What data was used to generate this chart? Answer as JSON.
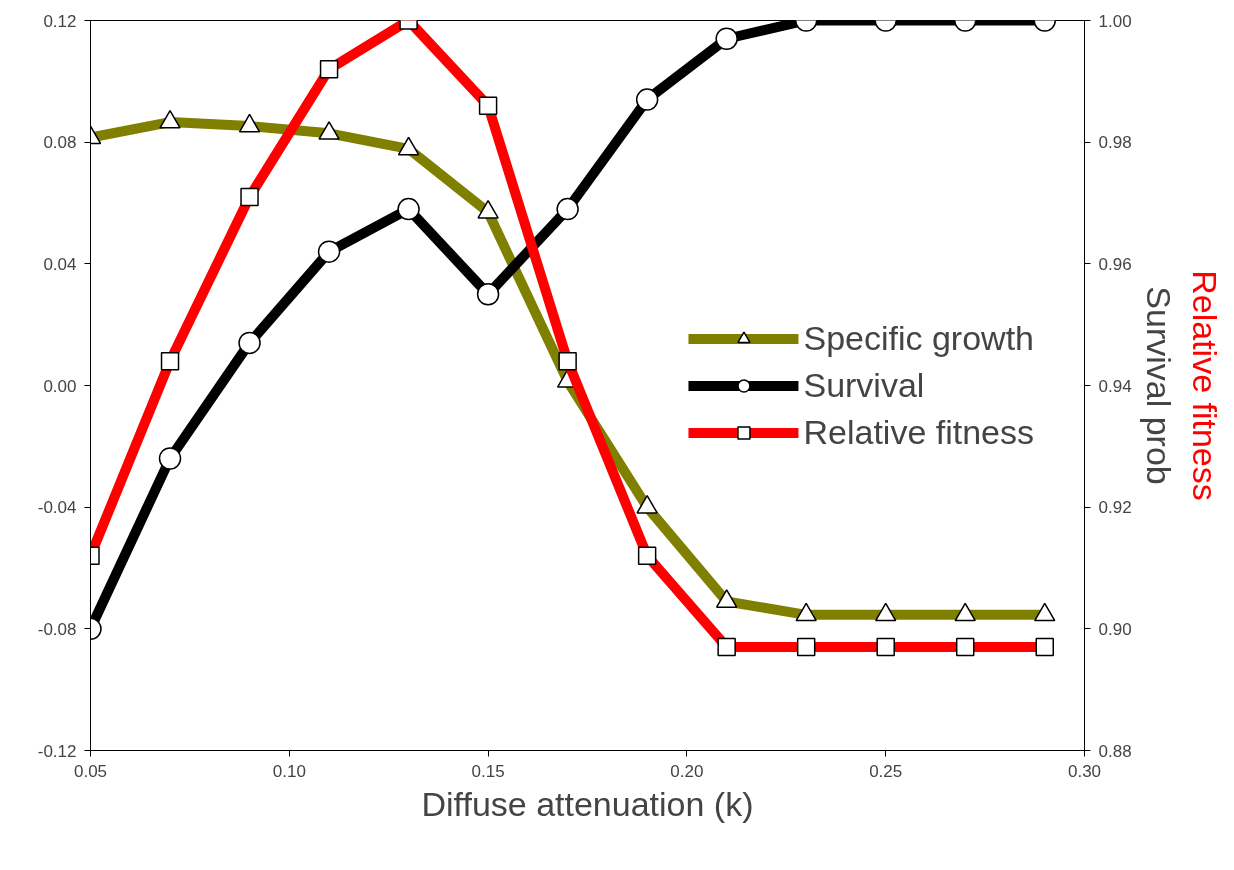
{
  "chart_data": {
    "type": "line",
    "x": [
      0.05,
      0.07,
      0.09,
      0.11,
      0.13,
      0.15,
      0.17,
      0.19,
      0.21,
      0.23,
      0.25,
      0.27,
      0.29
    ],
    "xlabel": "Diffuse attenuation (k)",
    "ylabel": null,
    "y2label": "Survival prob",
    "y3label": "Relative fitness",
    "series": [
      {
        "name": "Specific growth",
        "color": "#808000",
        "marker": "triangle",
        "values": [
          0.0815,
          0.0866,
          0.0853,
          0.0829,
          0.0778,
          0.057,
          0.0014,
          -0.04,
          -0.071,
          -0.0754,
          -0.0754,
          -0.0754,
          -0.0754
        ]
      },
      {
        "name": "Survival",
        "color": "#000000",
        "marker": "circle",
        "axis": "y2",
        "values": [
          0.9,
          0.928,
          0.947,
          0.962,
          0.969,
          0.955,
          0.969,
          0.987,
          0.997,
          1.0,
          1.0,
          1.0,
          1.0
        ]
      },
      {
        "name": "Relative fitness",
        "color": "#ff0000",
        "marker": "square",
        "axis": "y2",
        "values": [
          0.912,
          0.944,
          0.971,
          0.992,
          1.0,
          0.986,
          0.944,
          0.912,
          0.897,
          0.897,
          0.897,
          0.897,
          0.897
        ]
      }
    ],
    "xlim": [
      0.05,
      0.3
    ],
    "xticks": [
      0.05,
      {
        "value": 0.1,
        "label": "0.10"
      },
      0.15,
      {
        "value": 0.2,
        "label": "0.20"
      },
      0.25,
      {
        "value": 0.3,
        "label": "0.30"
      }
    ],
    "ylim": [
      -0.12,
      0.12
    ],
    "yticks": [
      -0.12,
      -0.08,
      -0.04,
      {
        "value": 0,
        "label": "0.00"
      },
      0.04,
      0.08,
      0.12
    ],
    "y2lim": [
      0.88,
      1.0
    ],
    "y2ticks": [
      0.88,
      {
        "value": 0.9,
        "label": "0.90"
      },
      0.92,
      0.94,
      0.96,
      0.98,
      {
        "value": 1,
        "label": "1.00"
      }
    ],
    "grid": false,
    "legend": "right"
  }
}
